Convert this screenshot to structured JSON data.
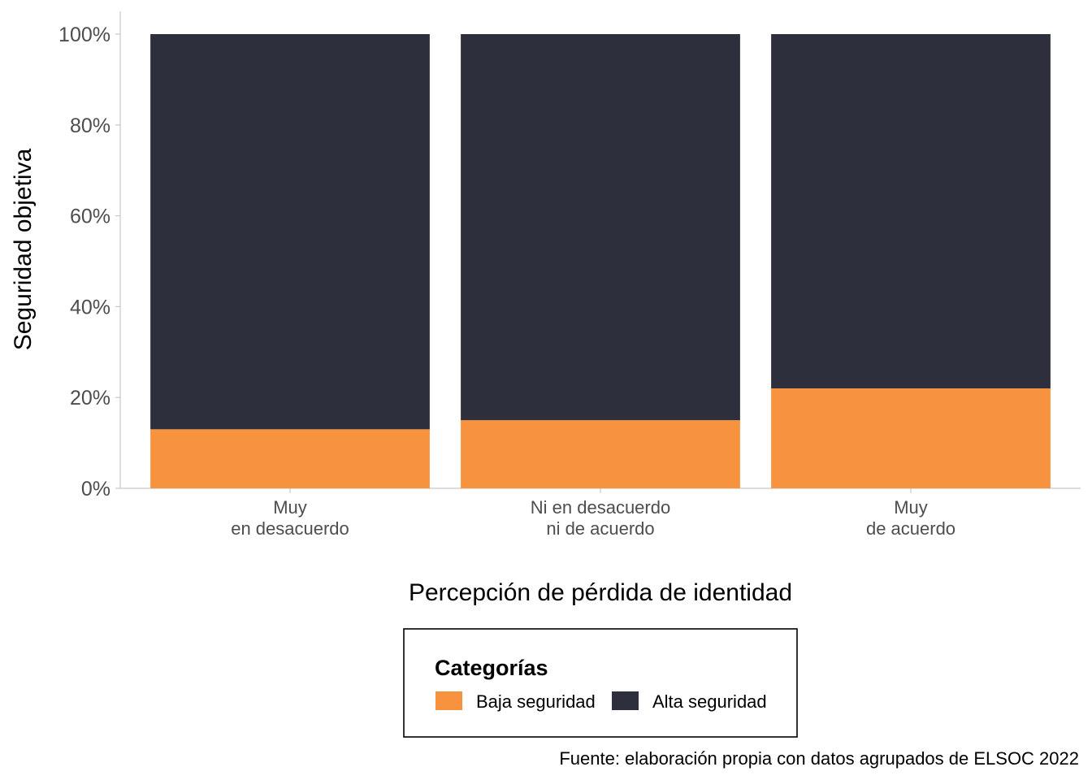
{
  "chart_data": {
    "type": "bar",
    "stacked": true,
    "percent": true,
    "categories": [
      [
        "Muy",
        "en desacuerdo"
      ],
      [
        "Ni en desacuerdo",
        "ni de acuerdo"
      ],
      [
        "Muy",
        "de acuerdo"
      ]
    ],
    "series": [
      {
        "name": "Baja seguridad",
        "color": "#f7923f",
        "values": [
          13,
          15,
          22
        ]
      },
      {
        "name": "Alta seguridad",
        "color": "#2d303c",
        "values": [
          87,
          85,
          78
        ]
      }
    ],
    "ylim": [
      0,
      100
    ],
    "y_ticks": [
      0,
      20,
      40,
      60,
      80,
      100
    ],
    "y_tick_labels": [
      "0%",
      "20%",
      "40%",
      "60%",
      "80%",
      "100%"
    ],
    "xlabel": "Percepción de pérdida de identidad",
    "ylabel": "Seguridad objetiva",
    "grid": false,
    "legend": {
      "title": "Categorías",
      "placement": "bottom"
    },
    "caption": "Fuente: elaboración propia con datos agrupados de ELSOC 2022"
  }
}
